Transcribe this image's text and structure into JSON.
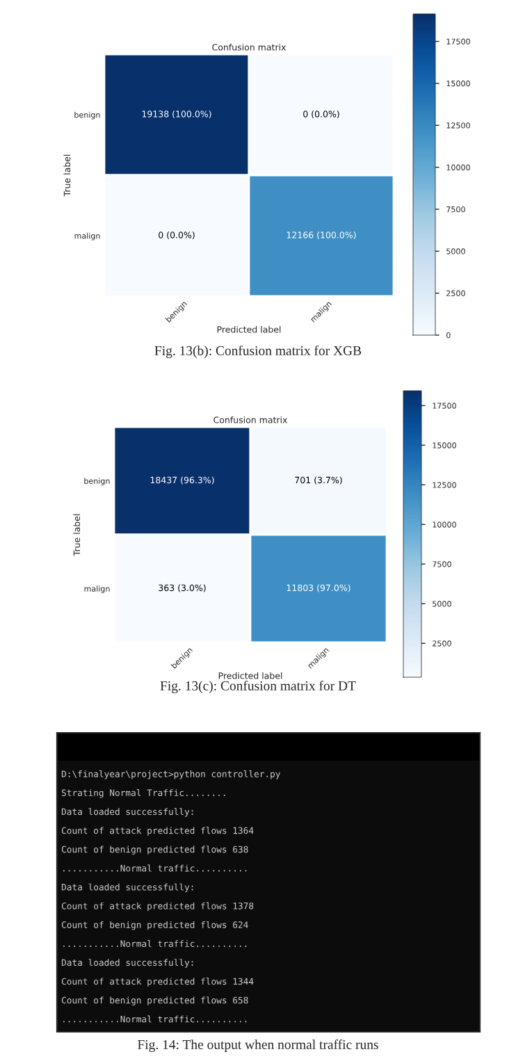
{
  "chart_data": [
    {
      "type": "heatmap",
      "title": "Confusion matrix",
      "xlabel": "Predicted label",
      "ylabel": "True label",
      "categories": [
        "benign",
        "malign"
      ],
      "y_categories": [
        "benign",
        "malign"
      ],
      "cells": [
        [
          19138,
          0
        ],
        [
          0,
          12166
        ]
      ],
      "cell_labels": [
        [
          "19138 (100.0%)",
          "0 (0.0%)"
        ],
        [
          "0 (0.0%)",
          "12166 (100.0%)"
        ]
      ],
      "clim": [
        0,
        19138
      ],
      "cticks": [
        0,
        2500,
        5000,
        7500,
        10000,
        12500,
        15000,
        17500
      ],
      "annotations": [
        "Fig. 13(b): Confusion matrix for XGB"
      ]
    },
    {
      "type": "heatmap",
      "title": "Confusion matrix",
      "xlabel": "Predicted label",
      "ylabel": "True label",
      "categories": [
        "benign",
        "malign"
      ],
      "y_categories": [
        "benign",
        "malign"
      ],
      "cells": [
        [
          18437,
          701
        ],
        [
          363,
          11803
        ]
      ],
      "cell_labels": [
        [
          "18437 (96.3%)",
          "701 (3.7%)"
        ],
        [
          "363 (3.0%)",
          "11803 (97.0%)"
        ]
      ],
      "clim": [
        363,
        18437
      ],
      "cticks": [
        2500,
        5000,
        7500,
        10000,
        12500,
        15000,
        17500
      ],
      "annotations": [
        "Fig. 13(c): Confusion matrix for DT"
      ]
    },
    {
      "type": "other",
      "annotations": [
        "D:\\finalyear\\project>python controller.py",
        "Strating Normal Traffic........",
        "Data loaded successfully:",
        "Count of attack predicted flows 1364",
        "Count of benign predicted flows 638",
        "...........Normal traffic..........",
        "Data loaded successfully:",
        "Count of attack predicted flows 1378",
        "Count of benign predicted flows 624",
        "...........Normal traffic..........",
        "Data loaded successfully:",
        "Count of attack predicted flows 1344",
        "Count of benign predicted flows 658",
        "...........Normal traffic..........",
        "Fig. 14: The output when normal traffic runs"
      ]
    }
  ]
}
